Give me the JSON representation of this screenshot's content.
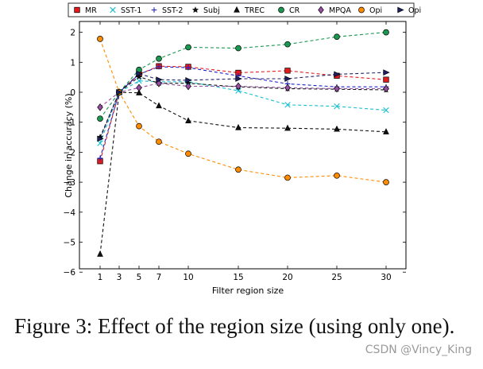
{
  "chart_data": {
    "type": "line",
    "xlabel": "Filter region size",
    "ylabel": "Change in accuracy (%)",
    "x": [
      1,
      3,
      5,
      7,
      10,
      15,
      20,
      25,
      30
    ],
    "xticks": [
      1,
      3,
      5,
      7,
      10,
      15,
      20,
      25,
      30
    ],
    "ylim": [
      -6,
      2.2
    ],
    "yticks": [
      -6,
      -5,
      -4,
      -3,
      -2,
      -1,
      0,
      1,
      2
    ],
    "ytick_labels": [
      "−6",
      "−5",
      "−4",
      "−3",
      "−2",
      "−1",
      "0",
      "1",
      "2"
    ],
    "legend_position": "top",
    "series": [
      {
        "name": "MR",
        "color": "#e41a1c",
        "marker": "square",
        "values": [
          -2.3,
          0.0,
          0.6,
          0.87,
          0.85,
          0.65,
          0.72,
          0.55,
          0.42
        ]
      },
      {
        "name": "SST-1",
        "color": "#17becf",
        "marker": "x",
        "values": [
          -1.7,
          0.0,
          0.38,
          0.35,
          0.35,
          0.05,
          -0.42,
          -0.47,
          -0.6
        ]
      },
      {
        "name": "SST-2",
        "color": "#2222cc",
        "marker": "plus",
        "values": [
          -2.2,
          0.0,
          0.6,
          0.85,
          0.82,
          0.55,
          0.28,
          0.18,
          0.18
        ]
      },
      {
        "name": "Subj",
        "color": "#111111",
        "marker": "star",
        "values": [
          -1.5,
          0.0,
          0.52,
          0.3,
          0.3,
          0.18,
          0.12,
          0.1,
          0.08
        ]
      },
      {
        "name": "TREC",
        "color": "#111111",
        "marker": "triangle-up",
        "values": [
          -5.4,
          0.0,
          -0.02,
          -0.45,
          -0.95,
          -1.18,
          -1.2,
          -1.23,
          -1.32
        ]
      },
      {
        "name": "CR",
        "color": "#1a9850",
        "marker": "circle",
        "values": [
          -0.88,
          0.0,
          0.75,
          1.12,
          1.5,
          1.47,
          1.6,
          1.85,
          2.0
        ]
      },
      {
        "name": "MPQA",
        "color": "#984ea3",
        "marker": "diamond",
        "values": [
          -0.5,
          0.0,
          0.15,
          0.3,
          0.2,
          0.2,
          0.15,
          0.12,
          0.12
        ]
      },
      {
        "name": "Opi",
        "color": "#ff8c00",
        "marker": "circle",
        "values": [
          1.78,
          0.0,
          -1.13,
          -1.65,
          -2.05,
          -2.58,
          -2.85,
          -2.78,
          -3.0
        ]
      },
      {
        "name": "Opi",
        "color": "#1f1f66",
        "marker": "triangle-right",
        "values": [
          -1.55,
          0.0,
          0.62,
          0.42,
          0.4,
          0.45,
          0.45,
          0.6,
          0.66
        ]
      }
    ]
  },
  "caption": "Figure 3:  Effect of the region size (using only one).",
  "watermark": "CSDN @Vincy_King"
}
